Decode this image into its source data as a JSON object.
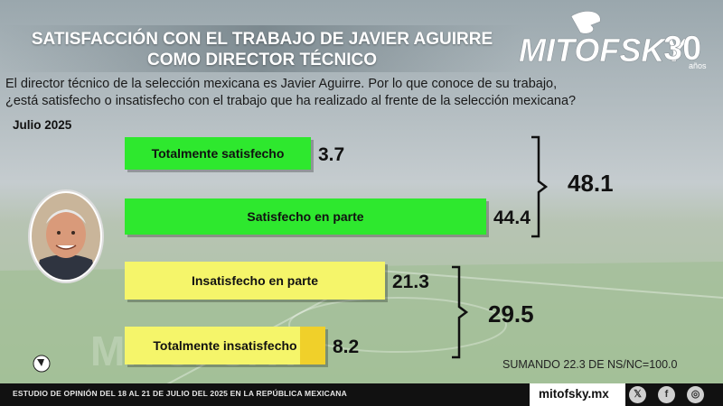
{
  "header": {
    "title_line1": "SATISFACCIÓN CON EL TRABAJO DE JAVIER AGUIRRE",
    "title_line2": "COMO DIRECTOR TÉCNICO",
    "logo_text": "MITOFSKY",
    "logo_badge": "30",
    "logo_sub": "años"
  },
  "question": {
    "line1": "El director técnico de la selección mexicana es Javier Aguirre. Por lo que conoce de su trabajo,",
    "line2": "¿está satisfecho o insatisfecho con el trabajo que ha realizado al frente de la selección mexicana?"
  },
  "date": "Julio 2025",
  "chart_data": {
    "type": "bar",
    "orientation": "horizontal",
    "categories": [
      "Totalmente satisfecho",
      "Satisfecho en parte",
      "Insatisfecho en parte",
      "Totalmente insatisfecho"
    ],
    "values": [
      3.7,
      44.4,
      21.3,
      8.2
    ],
    "value_labels": [
      "3.7",
      "44.4",
      "21.3",
      "8.2"
    ],
    "colors": [
      "#2ee82e",
      "#2ee82e",
      "#f5f56a",
      "#f5f56a"
    ],
    "groups": [
      {
        "label": "48.1",
        "value": 48.1,
        "members": [
          0,
          1
        ]
      },
      {
        "label": "29.5",
        "value": 29.5,
        "members": [
          2,
          3
        ]
      }
    ]
  },
  "note": "SUMANDO 22.3 DE NS/NC=100.0",
  "footer": {
    "study": "ESTUDIO DE OPINIÓN DEL 18 AL 21 DE JULIO DEL 2025 EN LA REPÚBLICA MEXICANA",
    "site": "mitofsky.mx",
    "social_icons": [
      "x-icon",
      "facebook-icon",
      "instagram-icon"
    ]
  },
  "watermark": "MITOFSKY"
}
